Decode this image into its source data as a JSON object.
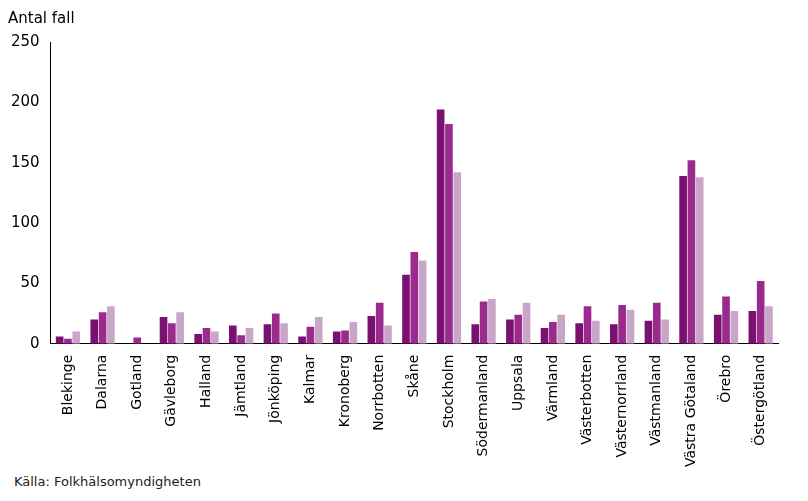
{
  "chart_data": {
    "type": "bar",
    "ylabel": "Antal fall",
    "source": "Källa: Folkhälsomyndigheten",
    "categories": [
      "Blekinge",
      "Dalarna",
      "Gotland",
      "Gävleborg",
      "Halland",
      "Jämtland",
      "Jönköping",
      "Kalmar",
      "Kronoberg",
      "Norrbotten",
      "Skåne",
      "Stockholm",
      "Södermanland",
      "Uppsala",
      "Värmland",
      "Västerbotten",
      "Västernorrland",
      "Västmanland",
      "Västra Götaland",
      "Örebro",
      "Östergötland"
    ],
    "series": [
      {
        "color": "#7a1070",
        "values": [
          6,
          20,
          0,
          22,
          8,
          15,
          16,
          6,
          10,
          23,
          57,
          194,
          16,
          20,
          13,
          17,
          16,
          19,
          139,
          24,
          27
        ]
      },
      {
        "color": "#9b2a8e",
        "values": [
          4,
          26,
          5,
          17,
          13,
          7,
          25,
          14,
          11,
          34,
          76,
          182,
          35,
          24,
          18,
          31,
          32,
          34,
          152,
          39,
          52
        ]
      },
      {
        "color": "#c9a6c8",
        "values": [
          10,
          31,
          0,
          26,
          10,
          13,
          17,
          22,
          18,
          15,
          69,
          142,
          37,
          34,
          24,
          19,
          28,
          20,
          138,
          27,
          31
        ]
      }
    ],
    "ylim": [
      0,
      250
    ],
    "yticks": [
      0,
      50,
      100,
      150,
      200,
      250
    ],
    "grid": false
  }
}
